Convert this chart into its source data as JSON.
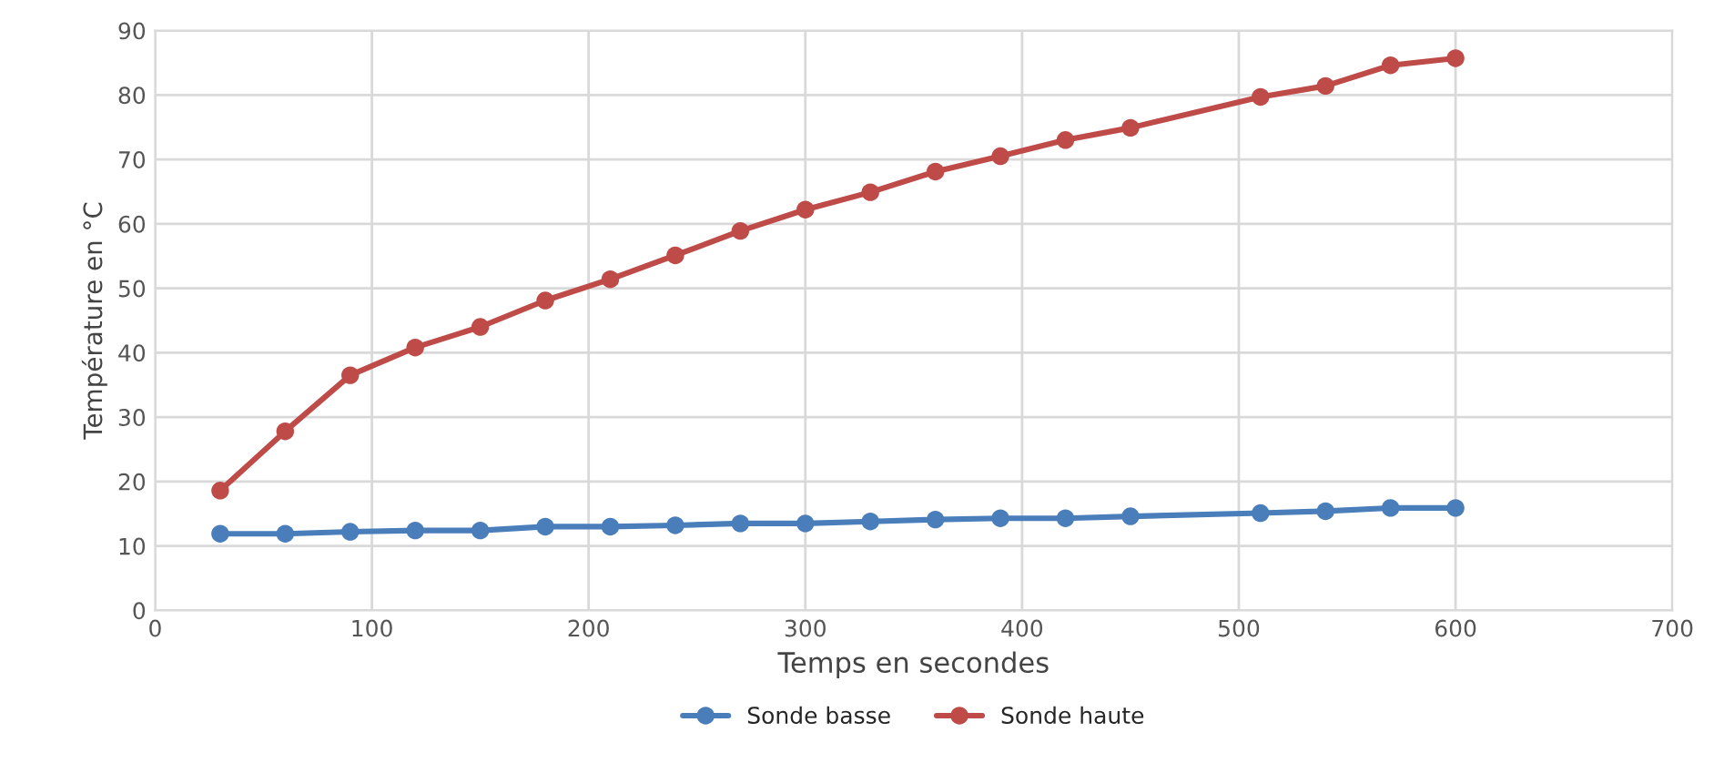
{
  "chart_data": {
    "type": "line",
    "xlabel": "Temps en secondes",
    "ylabel": "Température en °C",
    "x": [
      30,
      60,
      90,
      120,
      150,
      180,
      210,
      240,
      270,
      300,
      330,
      360,
      390,
      420,
      450,
      510,
      540,
      570,
      600
    ],
    "series": [
      {
        "name": "Sonde basse",
        "color": "#4a7ebb",
        "values": [
          11.9,
          11.9,
          12.2,
          12.4,
          12.4,
          13.0,
          13.0,
          13.2,
          13.5,
          13.5,
          13.8,
          14.1,
          14.3,
          14.3,
          14.6,
          15.1,
          15.4,
          15.9,
          15.9
        ]
      },
      {
        "name": "Sonde haute",
        "color": "#be4b48",
        "values": [
          18.6,
          27.8,
          36.5,
          40.8,
          44.0,
          48.1,
          51.4,
          55.1,
          58.9,
          62.2,
          64.9,
          68.1,
          70.5,
          73.0,
          74.9,
          79.7,
          81.4,
          84.6,
          85.7
        ]
      }
    ],
    "xlim": [
      0,
      700
    ],
    "xticks": [
      0,
      100,
      200,
      300,
      400,
      500,
      600,
      700
    ],
    "ylim": [
      0,
      90
    ],
    "yticks": [
      0,
      10,
      20,
      30,
      40,
      50,
      60,
      70,
      80,
      90
    ],
    "grid": true,
    "legend": "bottom",
    "marker": "circle",
    "line_style": "solid"
  }
}
